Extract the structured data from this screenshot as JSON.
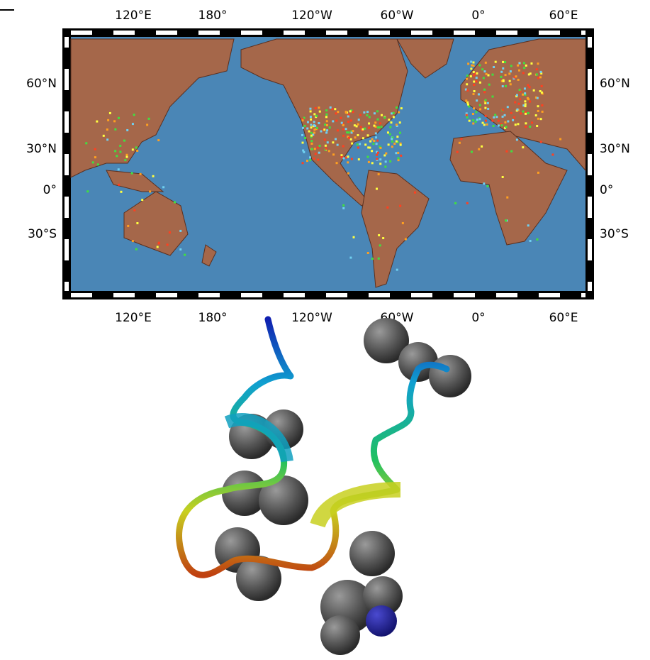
{
  "map": {
    "top_labels": [
      "120°E",
      "180°",
      "120°W",
      "60°W",
      "0°",
      "60°E"
    ],
    "bottom_labels": [
      "120°E",
      "180°",
      "120°W",
      "60°W",
      "0°",
      "60°E"
    ],
    "left_labels": [
      "60°N",
      "30°N",
      "0°",
      "30°S"
    ],
    "right_labels": [
      "60°N",
      "30°N",
      "0°",
      "30°S"
    ]
  }
}
